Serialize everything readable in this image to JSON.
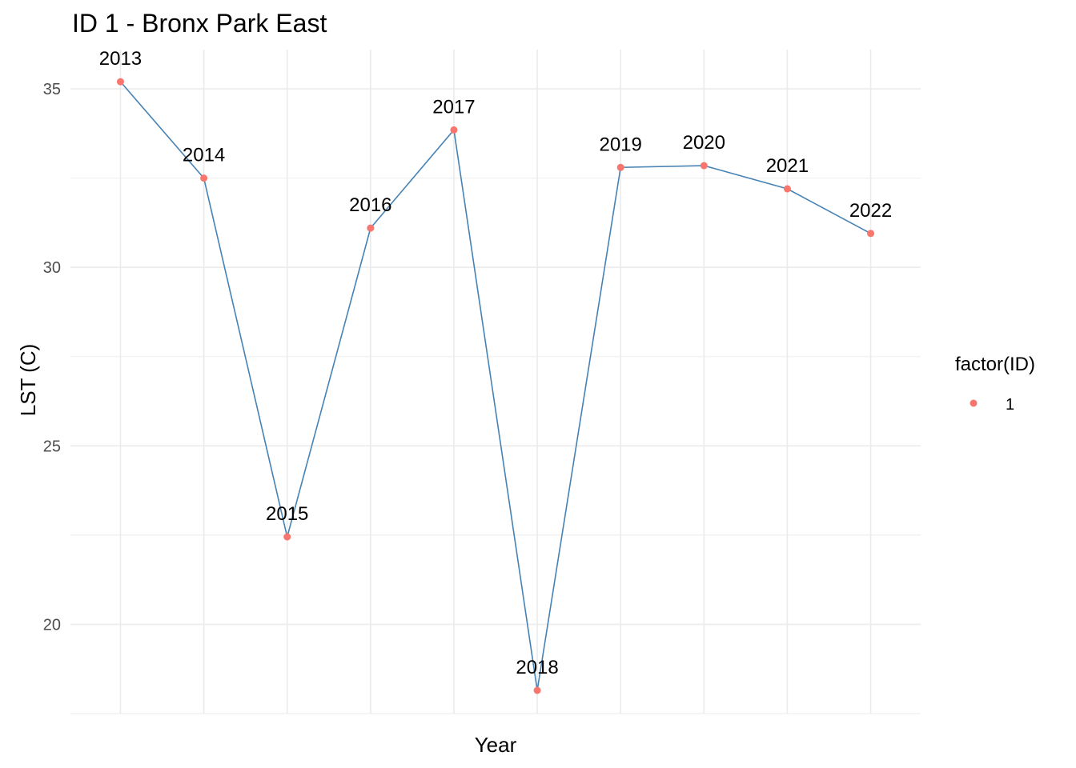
{
  "chart_data": {
    "type": "line",
    "title": "ID 1 - Bronx Park East",
    "xlabel": "Year",
    "ylabel": "LST (C)",
    "x": [
      2013,
      2014,
      2015,
      2016,
      2017,
      2018,
      2019,
      2020,
      2021,
      2022
    ],
    "point_labels": [
      "2013",
      "2014",
      "2015",
      "2016",
      "2017",
      "2018",
      "2019",
      "2020",
      "2021",
      "2022"
    ],
    "series": [
      {
        "name": "1",
        "values": [
          35.2,
          32.5,
          22.45,
          31.1,
          33.85,
          18.15,
          32.8,
          32.85,
          32.2,
          30.95
        ]
      }
    ],
    "xlim": [
      2012.4,
      2022.6
    ],
    "ylim": [
      17.5,
      36.1
    ],
    "yticks": [
      20,
      25,
      30,
      35
    ],
    "yticks_labels": [
      "20",
      "25",
      "30",
      "35"
    ],
    "grid": true,
    "legend": {
      "title": "factor(ID)",
      "placement": "right",
      "entries": [
        "1"
      ]
    },
    "colors": {
      "line": "#4682b4",
      "point": "#f8766d",
      "grid": "#ebebeb"
    }
  }
}
